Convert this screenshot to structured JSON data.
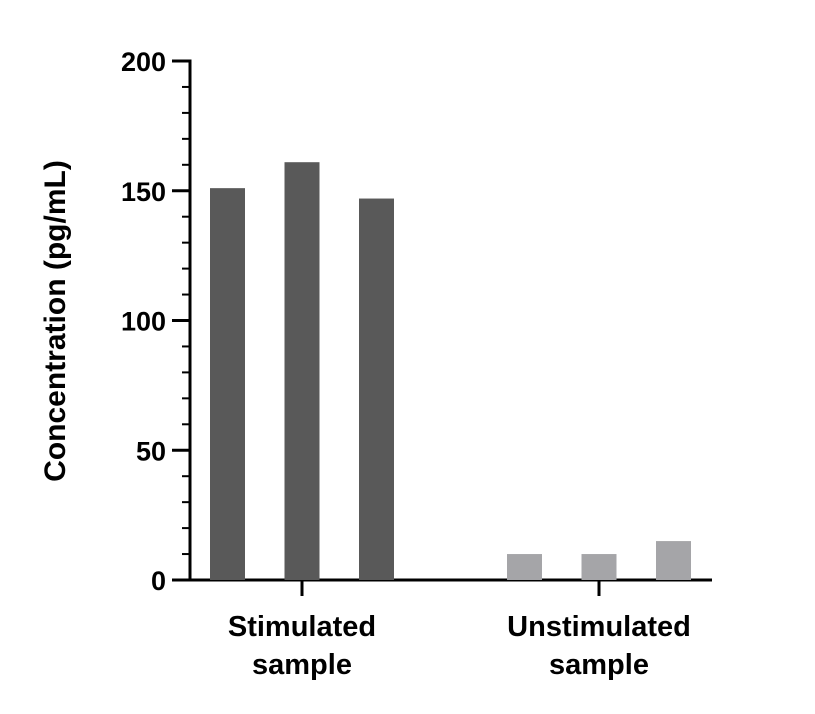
{
  "chart_data": {
    "type": "bar",
    "title": "",
    "xlabel": "",
    "ylabel": "Concentration (pg/mL)",
    "ylim": [
      0,
      200
    ],
    "yticks": [
      0,
      50,
      100,
      150,
      200
    ],
    "minor_tick_step": 10,
    "grid": false,
    "groups": [
      {
        "label": [
          "Stimulated",
          "sample"
        ],
        "color": "#595959",
        "values": [
          151,
          161,
          147
        ]
      },
      {
        "label": [
          "Unstimulated",
          "sample"
        ],
        "color": "#a5a5a8",
        "values": [
          10,
          10,
          15
        ]
      }
    ]
  }
}
